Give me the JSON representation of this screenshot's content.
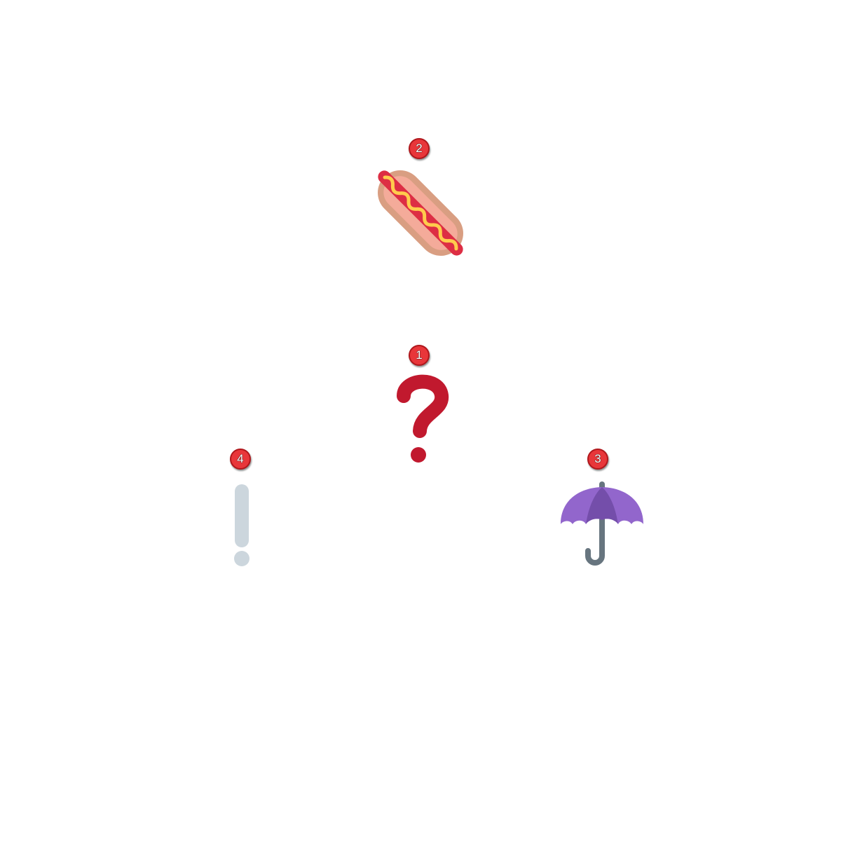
{
  "markers": [
    {
      "number": "1",
      "icon": "question-mark-icon",
      "color": "#c1192e"
    },
    {
      "number": "2",
      "icon": "hot-dog-icon",
      "colors": {
        "bun": "#d99e82",
        "sausage": "#dd2e44",
        "mustard": "#ffcc4d"
      }
    },
    {
      "number": "3",
      "icon": "umbrella-icon",
      "colors": {
        "canopy": "#9266cc",
        "canopy_dark": "#744eaa",
        "handle": "#67757f"
      }
    },
    {
      "number": "4",
      "icon": "exclamation-mark-icon",
      "color": "#ccd6dd"
    }
  ],
  "badge_color": "#e8363a"
}
